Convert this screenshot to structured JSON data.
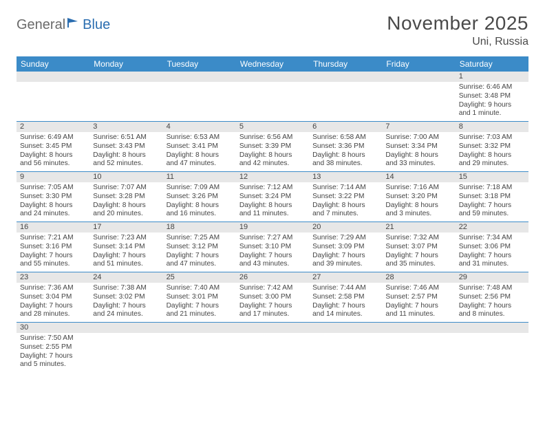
{
  "logo": {
    "part1": "General",
    "part2": "Blue"
  },
  "title": "November 2025",
  "location": "Uni, Russia",
  "colors": {
    "header_bg": "#3b8bc8",
    "header_text": "#ffffff",
    "daynum_bg": "#e7e7e7",
    "text": "#444444",
    "rule": "#3b8bc8",
    "logo_gray": "#6a6a6a",
    "logo_blue": "#2a6db0"
  },
  "days_of_week": [
    "Sunday",
    "Monday",
    "Tuesday",
    "Wednesday",
    "Thursday",
    "Friday",
    "Saturday"
  ],
  "weeks": [
    [
      {
        "n": "",
        "lines": []
      },
      {
        "n": "",
        "lines": []
      },
      {
        "n": "",
        "lines": []
      },
      {
        "n": "",
        "lines": []
      },
      {
        "n": "",
        "lines": []
      },
      {
        "n": "",
        "lines": []
      },
      {
        "n": "1",
        "lines": [
          "Sunrise: 6:46 AM",
          "Sunset: 3:48 PM",
          "Daylight: 9 hours",
          "and 1 minute."
        ]
      }
    ],
    [
      {
        "n": "2",
        "lines": [
          "Sunrise: 6:49 AM",
          "Sunset: 3:45 PM",
          "Daylight: 8 hours",
          "and 56 minutes."
        ]
      },
      {
        "n": "3",
        "lines": [
          "Sunrise: 6:51 AM",
          "Sunset: 3:43 PM",
          "Daylight: 8 hours",
          "and 52 minutes."
        ]
      },
      {
        "n": "4",
        "lines": [
          "Sunrise: 6:53 AM",
          "Sunset: 3:41 PM",
          "Daylight: 8 hours",
          "and 47 minutes."
        ]
      },
      {
        "n": "5",
        "lines": [
          "Sunrise: 6:56 AM",
          "Sunset: 3:39 PM",
          "Daylight: 8 hours",
          "and 42 minutes."
        ]
      },
      {
        "n": "6",
        "lines": [
          "Sunrise: 6:58 AM",
          "Sunset: 3:36 PM",
          "Daylight: 8 hours",
          "and 38 minutes."
        ]
      },
      {
        "n": "7",
        "lines": [
          "Sunrise: 7:00 AM",
          "Sunset: 3:34 PM",
          "Daylight: 8 hours",
          "and 33 minutes."
        ]
      },
      {
        "n": "8",
        "lines": [
          "Sunrise: 7:03 AM",
          "Sunset: 3:32 PM",
          "Daylight: 8 hours",
          "and 29 minutes."
        ]
      }
    ],
    [
      {
        "n": "9",
        "lines": [
          "Sunrise: 7:05 AM",
          "Sunset: 3:30 PM",
          "Daylight: 8 hours",
          "and 24 minutes."
        ]
      },
      {
        "n": "10",
        "lines": [
          "Sunrise: 7:07 AM",
          "Sunset: 3:28 PM",
          "Daylight: 8 hours",
          "and 20 minutes."
        ]
      },
      {
        "n": "11",
        "lines": [
          "Sunrise: 7:09 AM",
          "Sunset: 3:26 PM",
          "Daylight: 8 hours",
          "and 16 minutes."
        ]
      },
      {
        "n": "12",
        "lines": [
          "Sunrise: 7:12 AM",
          "Sunset: 3:24 PM",
          "Daylight: 8 hours",
          "and 11 minutes."
        ]
      },
      {
        "n": "13",
        "lines": [
          "Sunrise: 7:14 AM",
          "Sunset: 3:22 PM",
          "Daylight: 8 hours",
          "and 7 minutes."
        ]
      },
      {
        "n": "14",
        "lines": [
          "Sunrise: 7:16 AM",
          "Sunset: 3:20 PM",
          "Daylight: 8 hours",
          "and 3 minutes."
        ]
      },
      {
        "n": "15",
        "lines": [
          "Sunrise: 7:18 AM",
          "Sunset: 3:18 PM",
          "Daylight: 7 hours",
          "and 59 minutes."
        ]
      }
    ],
    [
      {
        "n": "16",
        "lines": [
          "Sunrise: 7:21 AM",
          "Sunset: 3:16 PM",
          "Daylight: 7 hours",
          "and 55 minutes."
        ]
      },
      {
        "n": "17",
        "lines": [
          "Sunrise: 7:23 AM",
          "Sunset: 3:14 PM",
          "Daylight: 7 hours",
          "and 51 minutes."
        ]
      },
      {
        "n": "18",
        "lines": [
          "Sunrise: 7:25 AM",
          "Sunset: 3:12 PM",
          "Daylight: 7 hours",
          "and 47 minutes."
        ]
      },
      {
        "n": "19",
        "lines": [
          "Sunrise: 7:27 AM",
          "Sunset: 3:10 PM",
          "Daylight: 7 hours",
          "and 43 minutes."
        ]
      },
      {
        "n": "20",
        "lines": [
          "Sunrise: 7:29 AM",
          "Sunset: 3:09 PM",
          "Daylight: 7 hours",
          "and 39 minutes."
        ]
      },
      {
        "n": "21",
        "lines": [
          "Sunrise: 7:32 AM",
          "Sunset: 3:07 PM",
          "Daylight: 7 hours",
          "and 35 minutes."
        ]
      },
      {
        "n": "22",
        "lines": [
          "Sunrise: 7:34 AM",
          "Sunset: 3:06 PM",
          "Daylight: 7 hours",
          "and 31 minutes."
        ]
      }
    ],
    [
      {
        "n": "23",
        "lines": [
          "Sunrise: 7:36 AM",
          "Sunset: 3:04 PM",
          "Daylight: 7 hours",
          "and 28 minutes."
        ]
      },
      {
        "n": "24",
        "lines": [
          "Sunrise: 7:38 AM",
          "Sunset: 3:02 PM",
          "Daylight: 7 hours",
          "and 24 minutes."
        ]
      },
      {
        "n": "25",
        "lines": [
          "Sunrise: 7:40 AM",
          "Sunset: 3:01 PM",
          "Daylight: 7 hours",
          "and 21 minutes."
        ]
      },
      {
        "n": "26",
        "lines": [
          "Sunrise: 7:42 AM",
          "Sunset: 3:00 PM",
          "Daylight: 7 hours",
          "and 17 minutes."
        ]
      },
      {
        "n": "27",
        "lines": [
          "Sunrise: 7:44 AM",
          "Sunset: 2:58 PM",
          "Daylight: 7 hours",
          "and 14 minutes."
        ]
      },
      {
        "n": "28",
        "lines": [
          "Sunrise: 7:46 AM",
          "Sunset: 2:57 PM",
          "Daylight: 7 hours",
          "and 11 minutes."
        ]
      },
      {
        "n": "29",
        "lines": [
          "Sunrise: 7:48 AM",
          "Sunset: 2:56 PM",
          "Daylight: 7 hours",
          "and 8 minutes."
        ]
      }
    ],
    [
      {
        "n": "30",
        "lines": [
          "Sunrise: 7:50 AM",
          "Sunset: 2:55 PM",
          "Daylight: 7 hours",
          "and 5 minutes."
        ]
      },
      {
        "n": "",
        "lines": []
      },
      {
        "n": "",
        "lines": []
      },
      {
        "n": "",
        "lines": []
      },
      {
        "n": "",
        "lines": []
      },
      {
        "n": "",
        "lines": []
      },
      {
        "n": "",
        "lines": []
      }
    ]
  ]
}
